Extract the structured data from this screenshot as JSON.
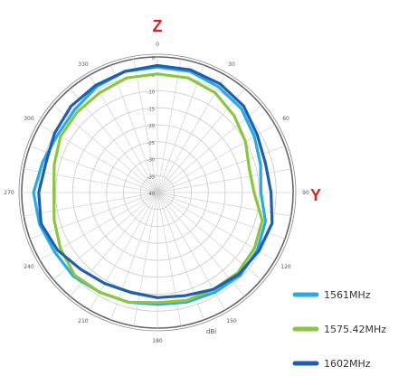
{
  "chart_data": {
    "type": "polar-line",
    "title_top": "Z",
    "title_right": "Y",
    "unit": "dBi",
    "angular_labels": [
      "0",
      "30",
      "60",
      "90",
      "120",
      "150",
      "180",
      "210",
      "240",
      "270",
      "300",
      "330"
    ],
    "angles_deg": [
      0,
      30,
      60,
      90,
      120,
      150,
      180,
      210,
      240,
      270,
      300,
      330
    ],
    "radial_labels": [
      "0",
      "-5",
      "-10",
      "-15",
      "-20",
      "-25",
      "-30",
      "-35",
      "-40"
    ],
    "radial_values": [
      0,
      -5,
      -10,
      -15,
      -20,
      -25,
      -30,
      -35,
      -40
    ],
    "rlim": [
      -40,
      0
    ],
    "grid": true,
    "legend_position": "bottom-right",
    "series": [
      {
        "name": "1561MHz",
        "color": "#29ABE2",
        "theta": [
          0,
          15,
          30,
          45,
          60,
          75,
          90,
          105,
          120,
          135,
          150,
          165,
          180,
          195,
          210,
          225,
          240,
          255,
          270,
          285,
          300,
          315,
          330,
          345
        ],
        "r": [
          -3,
          -3,
          -4,
          -5,
          -7,
          -8.5,
          -9.5,
          -7,
          -6,
          -5.5,
          -6,
          -6.5,
          -7,
          -6.5,
          -6,
          -5,
          -5,
          -4,
          -3.5,
          -5,
          -6,
          -5.5,
          -4,
          -3
        ]
      },
      {
        "name": "1575.42MHz",
        "color": "#8CC63F",
        "theta": [
          0,
          15,
          30,
          45,
          60,
          75,
          90,
          105,
          120,
          135,
          150,
          165,
          180,
          195,
          210,
          225,
          240,
          255,
          270,
          285,
          300,
          315,
          330,
          345
        ],
        "r": [
          -5,
          -5,
          -6,
          -8,
          -10,
          -12,
          -11.5,
          -8,
          -7,
          -6.5,
          -7,
          -7,
          -7.5,
          -6.5,
          -6,
          -5.5,
          -7,
          -8.5,
          -9.5,
          -8.5,
          -7,
          -6.5,
          -6,
          -5
        ]
      },
      {
        "name": "1602MHz",
        "color": "#1F5FAF",
        "theta": [
          0,
          15,
          30,
          45,
          60,
          75,
          90,
          105,
          120,
          135,
          150,
          165,
          180,
          195,
          210,
          225,
          240,
          255,
          270,
          285,
          300,
          315,
          330,
          345
        ],
        "r": [
          -2.5,
          -2.5,
          -3,
          -4,
          -6,
          -7,
          -6.5,
          -5,
          -5.5,
          -6,
          -7,
          -8.5,
          -9,
          -9.5,
          -9,
          -8,
          -6,
          -4.5,
          -5,
          -6,
          -5,
          -4,
          -3.5,
          -3
        ]
      }
    ]
  }
}
